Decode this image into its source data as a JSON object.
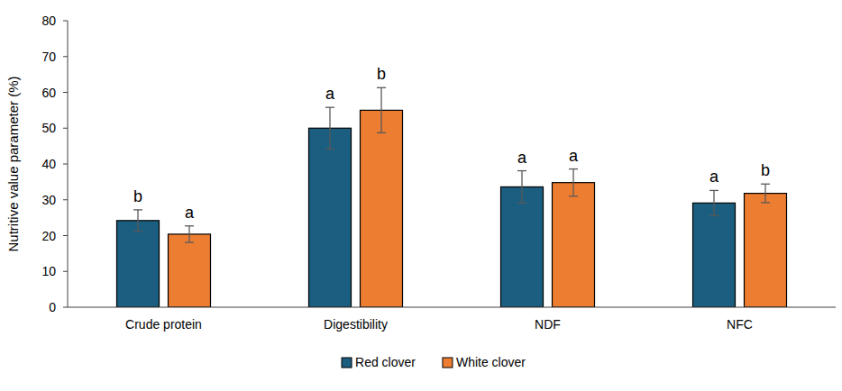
{
  "chart_data": {
    "type": "bar",
    "y_label": "Nutritive value parameter (%)",
    "categories": [
      "Crude protein",
      "Digestibility",
      "NDF",
      "NFC"
    ],
    "series": [
      {
        "name": "Red clover",
        "color": "#1b5e80",
        "values": [
          24.2,
          50,
          33.6,
          29.1
        ],
        "errors": [
          3,
          5.8,
          4.5,
          3.5
        ],
        "significance": [
          "b",
          "a",
          "a",
          "a"
        ]
      },
      {
        "name": "White clover",
        "color": "#ed7d31",
        "values": [
          20.4,
          55,
          34.8,
          31.8
        ],
        "errors": [
          2.3,
          6.3,
          3.8,
          2.6
        ],
        "significance": [
          "a",
          "b",
          "a",
          "b"
        ]
      }
    ],
    "ylim": [
      0,
      80
    ],
    "yticks": [
      0,
      10,
      20,
      30,
      40,
      50,
      60,
      70,
      80
    ],
    "grid": false,
    "legend": "bottom"
  }
}
